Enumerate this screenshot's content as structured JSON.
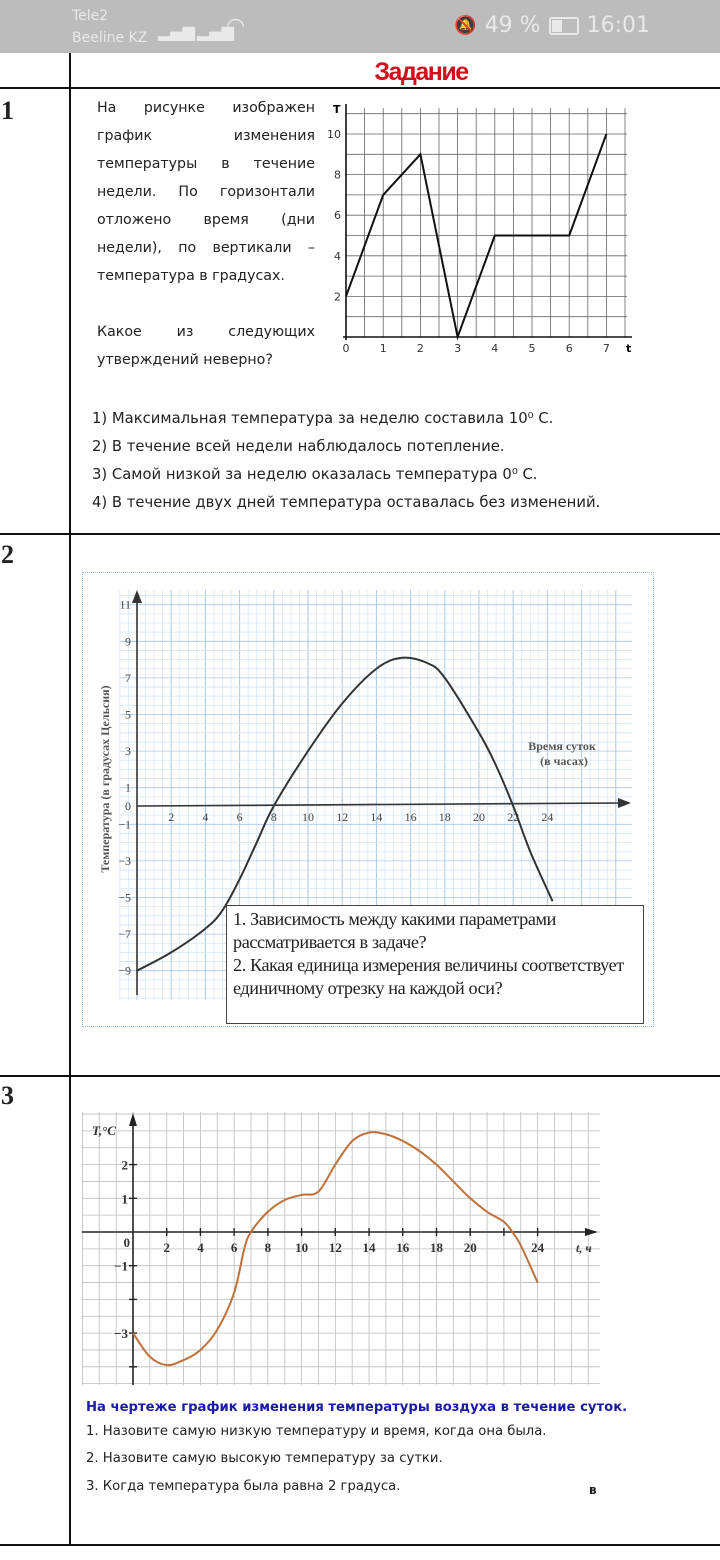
{
  "status_bar": {
    "carrier_1": "Tele2",
    "carrier_2": "Beeline KZ",
    "icons": [
      "signal-icon",
      "signal-icon",
      "wifi-icon",
      "mute-icon",
      "battery-icon"
    ],
    "battery": "49 %",
    "battery_level": 0.49,
    "time": "16:01"
  },
  "header": {
    "title": "Задание",
    "title_color": "#d0101a"
  },
  "tasks": [
    {
      "number": "1",
      "description": "На рисунке изображен график изменения температуры в течение недели. По горизонтали отложено время (дни недели), по вертикали – температура в градусах.",
      "question": "Какое из следующих утверждений неверно?",
      "options": [
        "1) Максимальная температура за неделю составила 10⁰ С.",
        "2) В течение всей недели наблюдалось потепление.",
        "3) Самой низкой за неделю оказалась температура 0⁰ С.",
        "4) В течение двух дней температура оставалась без изменений."
      ]
    },
    {
      "number": "2",
      "questions": [
        "1. Зависимость между какими параметрами рассматривается в задаче?",
        "2. Какая единица измерения величины соответствует единичному отрезку на каждой оси?"
      ]
    },
    {
      "number": "3",
      "title": "На чертеже график изменения температуры воздуха в течение суток.",
      "title_color": "#1a1aa8",
      "questions": [
        "1.  Назовите самую низкую температуру и время, когда она была.",
        "2.  Назовите самую высокую температуру за сутки.",
        "3.  Когда температура была равна 2 градуса."
      ],
      "mark": "в"
    }
  ],
  "chart_data": [
    {
      "type": "line",
      "xlabel": "t",
      "ylabel": "T",
      "x": [
        0,
        1,
        2,
        3,
        4,
        5,
        6,
        7
      ],
      "values": [
        2,
        7,
        9,
        0,
        5,
        5,
        5,
        10
      ],
      "xticks": [
        "0",
        "1",
        "2",
        "3",
        "4",
        "5",
        "6",
        "7"
      ],
      "yticks": [
        "2",
        "4",
        "6",
        "8",
        "10"
      ],
      "xlim": [
        0,
        7.5
      ],
      "ylim": [
        0,
        11
      ],
      "grid": true
    },
    {
      "type": "line",
      "xlabel": "Время суток (в часах)",
      "ylabel": "Температура (в градусах Цельсия)",
      "x": [
        0,
        2,
        4,
        5,
        6,
        7,
        8,
        10,
        12,
        14,
        15.5,
        17,
        18,
        20,
        21,
        22,
        23,
        24.3
      ],
      "values": [
        -9,
        -8,
        -6.7,
        -5.7,
        -4,
        -2,
        0,
        3,
        5.6,
        7.5,
        8.1,
        7.8,
        7,
        4,
        2.2,
        0,
        -2.5,
        -5.2
      ],
      "xticks": [
        "2",
        "4",
        "6",
        "8",
        "10",
        "12",
        "14",
        "16",
        "18",
        "20",
        "22",
        "24"
      ],
      "yticks": [
        "11",
        "9",
        "7",
        "5",
        "3",
        "1",
        "0",
        "−1",
        "−3",
        "−5",
        "−7",
        "−9"
      ],
      "xlim": [
        0,
        28
      ],
      "ylim": [
        -10,
        11.5
      ],
      "grid": true,
      "line_color": "#333333"
    },
    {
      "type": "line",
      "xlabel": "t, ч",
      "ylabel": "T,°C",
      "x": [
        0,
        1,
        2,
        3,
        4,
        5,
        6,
        6.6,
        7,
        8,
        9,
        10,
        11,
        12,
        13,
        14,
        15,
        16,
        17,
        18,
        19,
        20,
        21,
        22,
        22.5,
        23,
        24
      ],
      "values": [
        -3,
        -3.7,
        -3.95,
        -3.8,
        -3.5,
        -2.9,
        -1.8,
        -0.5,
        0,
        0.6,
        0.95,
        1.1,
        1.2,
        2.0,
        2.7,
        2.95,
        2.9,
        2.7,
        2.4,
        2.0,
        1.5,
        1.0,
        0.6,
        0.3,
        0,
        -0.4,
        -1.5
      ],
      "xticks": [
        "2",
        "4",
        "6",
        "8",
        "10",
        "12",
        "14",
        "16",
        "18",
        "20",
        "24"
      ],
      "yticks": [
        "2",
        "1",
        "0",
        "−1",
        "−3"
      ],
      "xlim": [
        -3,
        27
      ],
      "ylim": [
        -4.5,
        3.6
      ],
      "grid": true,
      "line_color": "#c0703a"
    }
  ]
}
